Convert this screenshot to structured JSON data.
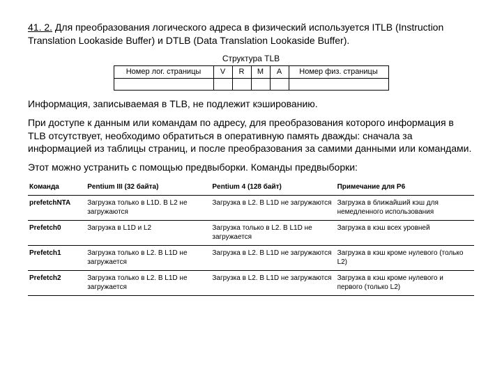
{
  "intro": {
    "section_number": "41. 2.",
    "text": " Для преобразования логического адреса в физический используется ITLB (Instruction Translation Lookaside Buffer) и DTLB (Data Translation Lookaside Buffer)."
  },
  "tlb_caption": "Структура TLB",
  "tlb_header": {
    "c0": "Номер лог. страницы",
    "c1": "V",
    "c2": "R",
    "c3": "M",
    "c4": "A",
    "c5": "Номер физ. страницы"
  },
  "body_paras": {
    "p1": "Информация, записываемая в TLB, не подлежит кэшированию.",
    "p2": "При доступе к данным или командам по адресу, для преобразования которого информация в TLB отсутствует, необходимо обратиться в оперативную память дважды: сначала за информацией из таблицы страниц, и после преобразования за самими данными или командами.",
    "p3": "Этот можно устранить с помощью предвыборки. Команды предвыборки:"
  },
  "table": {
    "headers": {
      "h0": "Команда",
      "h1": "Pentium III (32 байта)",
      "h2": "Pentium 4 (128 байт)",
      "h3": "Примечание для P6"
    },
    "rows": [
      {
        "c0": "prefetchNTA",
        "c1": "Загрузка только в L1D. В L2 не загружаются",
        "c2": "Загрузка в L2. В L1D не загружаются",
        "c3": "Загрузка в ближайший кэш для немедленного использования"
      },
      {
        "c0": "Prefetch0",
        "c1": "Загрузка в L1D и L2",
        "c2": "Загрузка только в L2. В L1D не загружается",
        "c3": "Загрузка в кэш всех уровней"
      },
      {
        "c0": "Prefetch1",
        "c1": "Загрузка только в L2. В L1D не загружается",
        "c2": "Загрузка в L2. В L1D не загружаются",
        "c3": "Загрузка в кэш кроме нулевого (только L2)"
      },
      {
        "c0": "Prefetch2",
        "c1": "Загрузка только в L2. В L1D не загружается",
        "c2": "Загрузка в L2. В L1D не загружаются",
        "c3": "Загрузка в кэш кроме нулевого и первого (только L2)"
      }
    ]
  }
}
